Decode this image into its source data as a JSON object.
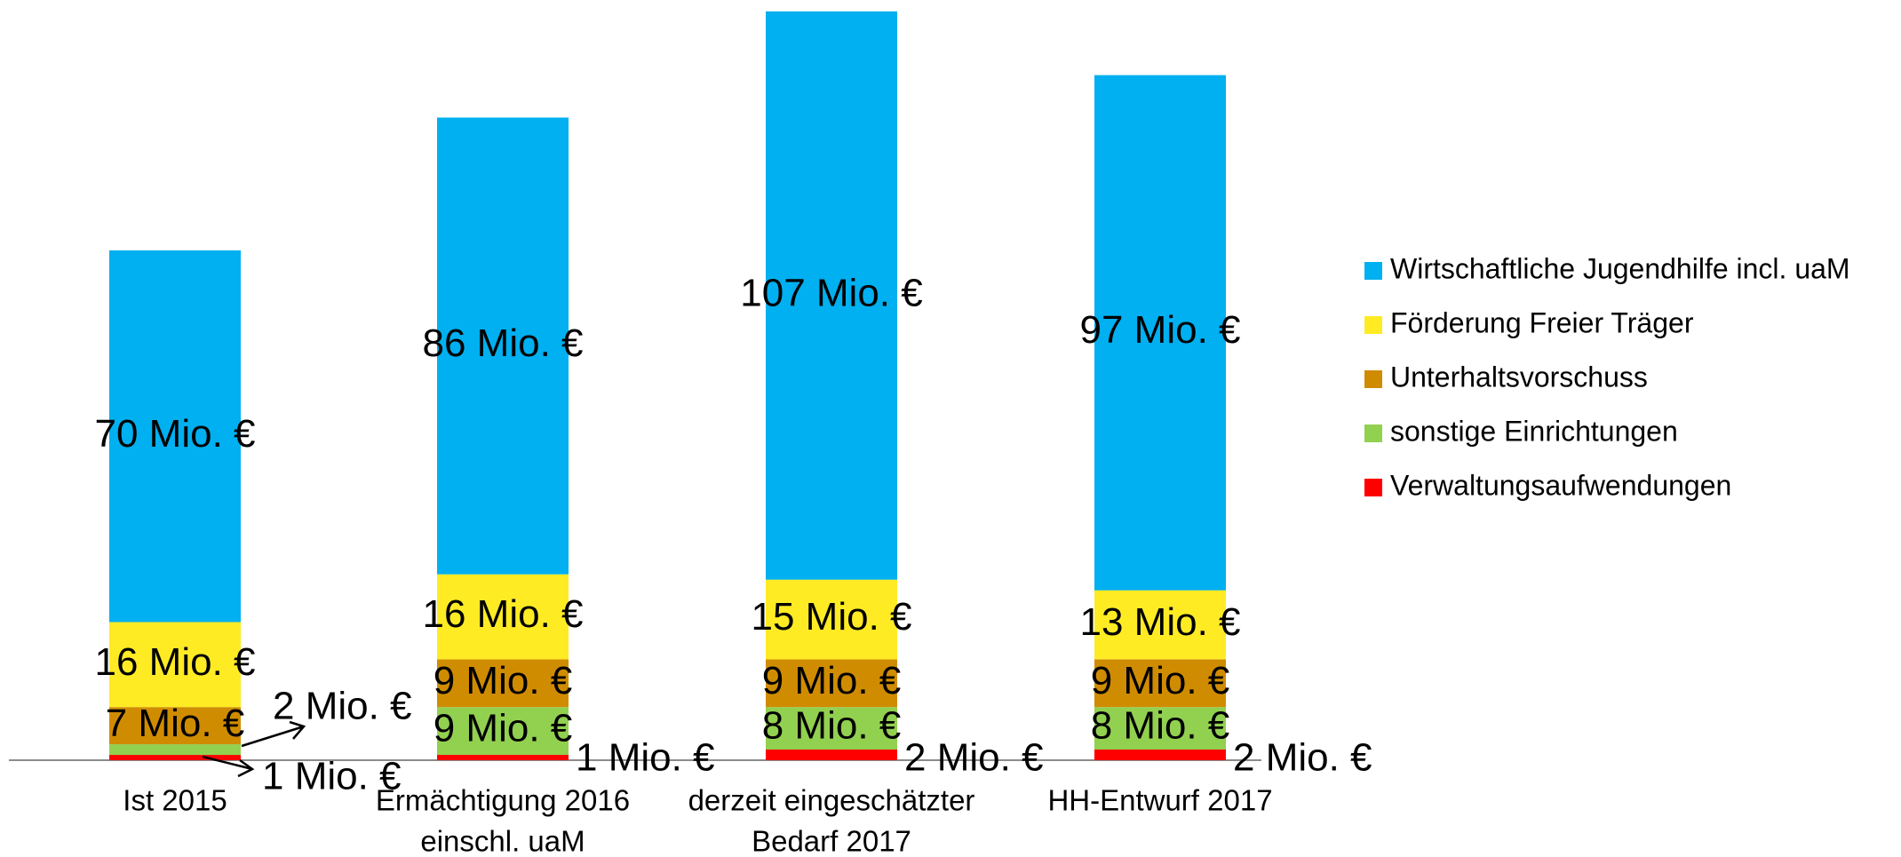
{
  "chart_data": {
    "type": "bar",
    "stacked": true,
    "categories": [
      [
        "Ist 2015"
      ],
      [
        "Ermächtigung 2016",
        "einschl. uaM"
      ],
      [
        "derzeit eingeschätzter",
        "Bedarf 2017"
      ],
      [
        "HH-Entwurf 2017"
      ]
    ],
    "series": [
      {
        "name": "Verwaltungsaufwendungen",
        "color": "#ff0000",
        "values": [
          1,
          1,
          2,
          2
        ],
        "labels": [
          "1 Mio. €",
          "1 Mio. €",
          "2 Mio. €",
          "2 Mio. €"
        ]
      },
      {
        "name": "sonstige Einrichtungen",
        "color": "#92d050",
        "values": [
          2,
          9,
          8,
          8
        ],
        "labels": [
          "2 Mio. €",
          "9 Mio. €",
          "8 Mio. €",
          "8 Mio. €"
        ]
      },
      {
        "name": "Unterhaltsvorschuss",
        "color": "#d08c00",
        "values": [
          7,
          9,
          9,
          9
        ],
        "labels": [
          "7 Mio. €",
          "9 Mio. €",
          "9 Mio. €",
          "9 Mio. €"
        ]
      },
      {
        "name": "Förderung Freier Träger",
        "color": "#ffeb24",
        "values": [
          16,
          16,
          15,
          13
        ],
        "labels": [
          "16 Mio. €",
          "16 Mio. €",
          "15 Mio. €",
          "13 Mio. €"
        ]
      },
      {
        "name": "Wirtschaftliche Jugendhilfe incl. uaM",
        "color": "#00b0f0",
        "values": [
          70,
          86,
          107,
          97
        ],
        "labels": [
          "70 Mio. €",
          "86 Mio. €",
          "107 Mio. €",
          "97 Mio. €"
        ]
      }
    ],
    "legend_order": [
      "Wirtschaftliche Jugendhilfe incl. uaM",
      "Förderung Freier Träger",
      "Unterhaltsvorschuss",
      "sonstige Einrichtungen",
      "Verwaltungsaufwendungen"
    ],
    "legend_position": "right",
    "unit": "Mio. €",
    "title": "",
    "xlabel": "",
    "ylabel": "",
    "grid": false,
    "ylim": [
      0,
      141
    ]
  }
}
